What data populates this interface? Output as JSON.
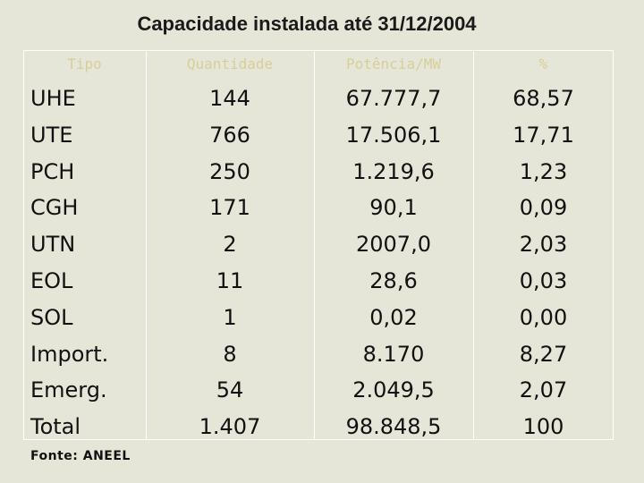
{
  "title": "Capacidade instalada até 31/12/2004",
  "headers": [
    "Tipo",
    "Quantidade",
    "Potência/MW",
    "%"
  ],
  "rows": [
    [
      "UHE",
      "144",
      "67.777,7",
      "68,57"
    ],
    [
      "UTE",
      "766",
      "17.506,1",
      "17,71"
    ],
    [
      "PCH",
      "250",
      "1.219,6",
      "1,23"
    ],
    [
      "CGH",
      "171",
      "90,1",
      "0,09"
    ],
    [
      "UTN",
      "2",
      "2007,0",
      "2,03"
    ],
    [
      "EOL",
      "11",
      "28,6",
      "0,03"
    ],
    [
      "SOL",
      "1",
      "0,02",
      "0,00"
    ],
    [
      "Import.",
      "8",
      "8.170",
      "8,27"
    ],
    [
      "Emerg.",
      "54",
      "2.049,5",
      "2,07"
    ],
    [
      "Total",
      "1.407",
      "98.848,5",
      "100"
    ]
  ],
  "source": "Fonte: ANEEL",
  "colors": {
    "background": "#e6e6d8",
    "header_text": "#d7ce9a",
    "grid_lines": "#ffffff"
  }
}
